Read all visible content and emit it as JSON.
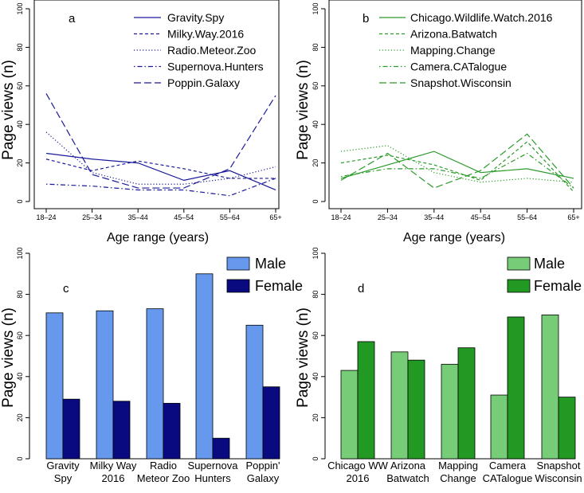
{
  "chart_data": [
    {
      "panel": "a",
      "type": "line",
      "xlabel": "Age range (years)",
      "ylabel": "Page views (n)",
      "ylim": [
        0,
        100
      ],
      "yticks": [
        "0",
        "20",
        "40",
        "60",
        "80",
        "100"
      ],
      "categories": [
        "18–24",
        "25–34",
        "35–44",
        "45–54",
        "55–64",
        "65+"
      ],
      "color": "#1a1a99",
      "legend_position": "top-right",
      "series": [
        {
          "name": "Gravity.Spy",
          "dash": "solid",
          "values": [
            25,
            22,
            20,
            11,
            16,
            6
          ]
        },
        {
          "name": "Milky.Way.2016",
          "dash": "short-dash",
          "values": [
            22,
            16,
            21,
            17,
            12,
            12
          ]
        },
        {
          "name": "Radio.Meteor.Zoo",
          "dash": "dotted",
          "values": [
            36,
            15,
            9,
            9,
            12,
            18
          ]
        },
        {
          "name": "Supernova.Hunters",
          "dash": "dot-dash",
          "values": [
            9,
            8,
            6,
            6,
            3,
            12
          ]
        },
        {
          "name": "Poppin.Galaxy",
          "dash": "long-dash",
          "values": [
            56,
            14,
            7,
            7,
            17,
            55
          ]
        }
      ]
    },
    {
      "panel": "b",
      "type": "line",
      "xlabel": "Age range (years)",
      "ylabel": "Page views (n)",
      "ylim": [
        0,
        100
      ],
      "yticks": [
        "0",
        "20",
        "40",
        "60",
        "80",
        "100"
      ],
      "categories": [
        "18–24",
        "25–34",
        "35–44",
        "45–54",
        "55–64",
        "65+"
      ],
      "color": "#2a9a2a",
      "legend_position": "top-right",
      "series": [
        {
          "name": "Chicago.Wildlife.Watch.2016",
          "dash": "solid",
          "values": [
            12,
            19,
            26,
            15,
            17,
            12
          ]
        },
        {
          "name": "Arizona.Batwatch",
          "dash": "short-dash",
          "values": [
            20,
            24,
            19,
            11,
            31,
            5
          ]
        },
        {
          "name": "Mapping.Change",
          "dash": "dotted",
          "values": [
            26,
            29,
            15,
            10,
            12,
            10
          ]
        },
        {
          "name": "Camera.CATalogue",
          "dash": "dot-dash",
          "values": [
            13,
            17,
            17,
            12,
            25,
            7
          ]
        },
        {
          "name": "Snapshot.Wisconsin",
          "dash": "long-dash",
          "values": [
            11,
            25,
            7,
            16,
            35,
            7
          ]
        }
      ]
    },
    {
      "panel": "c",
      "type": "bar",
      "ylabel": "Page views (n)",
      "ylim": [
        0,
        100
      ],
      "yticks": [
        "0",
        "20",
        "40",
        "60",
        "80",
        "100"
      ],
      "categories": [
        [
          "Gravity",
          "Spy"
        ],
        [
          "Milky Way",
          "2016"
        ],
        [
          "Radio",
          "Meteor Zoo"
        ],
        [
          "Supernova",
          "Hunters"
        ],
        [
          "Poppin'",
          "Galaxy"
        ]
      ],
      "legend_position": "top-right",
      "series": [
        {
          "name": "Male",
          "color": "#6699ee",
          "values": [
            71,
            72,
            73,
            90,
            65
          ]
        },
        {
          "name": "Female",
          "color": "#0a0a80",
          "values": [
            29,
            28,
            27,
            10,
            35
          ]
        }
      ]
    },
    {
      "panel": "d",
      "type": "bar",
      "ylabel": "Page views (n)",
      "ylim": [
        0,
        100
      ],
      "yticks": [
        "0",
        "20",
        "40",
        "60",
        "80",
        "100"
      ],
      "categories": [
        [
          "Chicago WW",
          "2016"
        ],
        [
          "Arizona",
          "Batwatch"
        ],
        [
          "Mapping",
          "Change"
        ],
        [
          "Camera",
          "CATalogue"
        ],
        [
          "Snapshot",
          "Wisconsin"
        ]
      ],
      "legend_position": "top-right",
      "series": [
        {
          "name": "Male",
          "color": "#77cc77",
          "values": [
            43,
            52,
            46,
            31,
            70
          ]
        },
        {
          "name": "Female",
          "color": "#229922",
          "values": [
            57,
            48,
            54,
            69,
            30
          ]
        }
      ]
    }
  ]
}
